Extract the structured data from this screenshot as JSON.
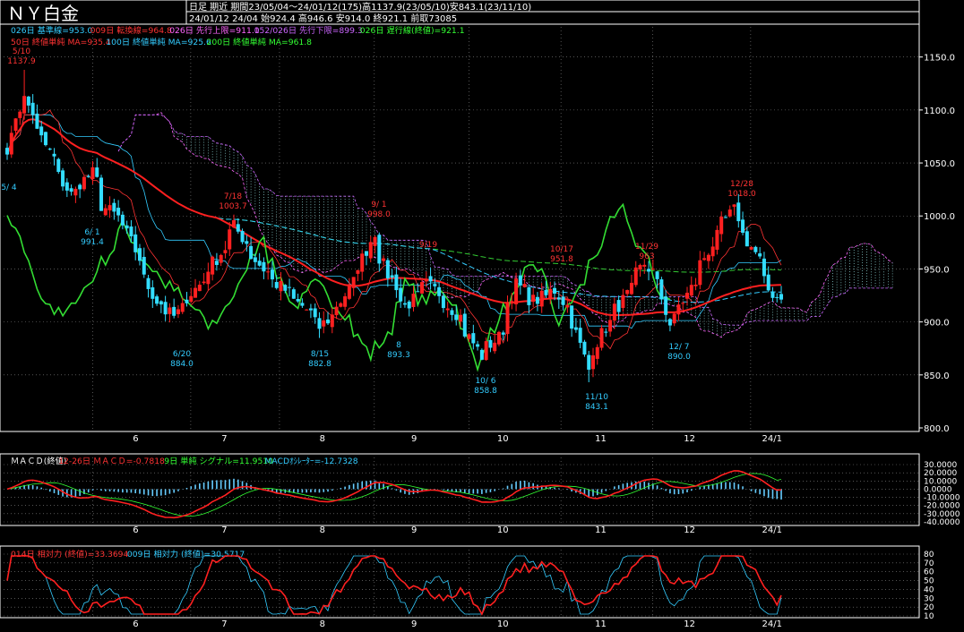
{
  "header": {
    "title": "ＮＹ白金",
    "line1": "日足  期近  期間23/05/04～24/01/12(175)高1137.9(23/05/10)安843.1(23/11/10)",
    "line2": "24/01/12 24/04 始924.4 高946.6 安914.0 終921.1 前取73085"
  },
  "legend": {
    "row1": [
      {
        "text": "026日 基準線=953.0",
        "color": "#33ccff"
      },
      {
        "text": "009日 転換線=964.8",
        "color": "#ff3333"
      },
      {
        "text": "026日 先行上限=911.1",
        "color": "#ff66ff"
      },
      {
        "text": "052/026日 先行下限=899.3",
        "color": "#cc66ff"
      },
      {
        "text": "026日 遅行線(終値)=921.1",
        "color": "#33ff33"
      }
    ],
    "row2": [
      {
        "text": "50日 終値単純 MA=935.4",
        "color": "#ff3333"
      },
      {
        "text": "100日 終値単純 MA=925.6",
        "color": "#33ccff"
      },
      {
        "text": "200日 終値単純 MA=961.8",
        "color": "#33ff33"
      }
    ]
  },
  "macd_legend": [
    {
      "text": "ＭＡＣＤ(終値)",
      "color": "#ffffff"
    },
    {
      "text": "12-26日 ＭＡＣＤ=-0.7818",
      "color": "#ff3333"
    },
    {
      "text": "9日 単純 シグナル=11.9510",
      "color": "#33ff33"
    },
    {
      "text": "MACDｵｼﾚｰﾀｰ=-12.7328",
      "color": "#33ccff"
    }
  ],
  "rsi_legend": [
    {
      "text": "014日 相対力 (終値)=33.3694",
      "color": "#ff3333"
    },
    {
      "text": "009日 相対力 (終値)=30.5717",
      "color": "#33ccff"
    }
  ],
  "price_axis": {
    "ticks": [
      "1150.0",
      "1100.0",
      "1050.0",
      "1000.0",
      "950.0",
      "900.0",
      "850.0",
      "800.0"
    ],
    "values": [
      1150,
      1100,
      1050,
      1000,
      950,
      900,
      850,
      800
    ],
    "ylim": [
      800,
      1170
    ]
  },
  "macd_axis": {
    "ticks": [
      "30.0000",
      "20.0000",
      "10.0000",
      "0.0000",
      "-10.0000",
      "-20.0000",
      "-30.0000",
      "-40.0000"
    ],
    "values": [
      30,
      20,
      10,
      0,
      -10,
      -20,
      -30,
      -40
    ],
    "ylim": [
      -40,
      30
    ]
  },
  "rsi_axis": {
    "ticks": [
      "80",
      "70",
      "60",
      "50",
      "40",
      "30",
      "20",
      "10"
    ],
    "values": [
      80,
      70,
      60,
      50,
      40,
      30,
      20,
      10
    ],
    "ylim": [
      10,
      80
    ]
  },
  "month_labels": [
    "6",
    "7",
    "8",
    "9",
    "10",
    "11",
    "12",
    "24/1"
  ],
  "annotations": [
    {
      "date": "5/10",
      "value": "1137.9",
      "color": "#ff3333"
    },
    {
      "date": "5/ 4",
      "value": "",
      "color": "#33ccff"
    },
    {
      "date": "6/ 1",
      "value": "991.4",
      "color": "#33ccff"
    },
    {
      "date": "6/20",
      "value": "884.0",
      "color": "#33ccff"
    },
    {
      "date": "7/18",
      "value": "1003.7",
      "color": "#ff3333"
    },
    {
      "date": "8/15",
      "value": "882.8",
      "color": "#33ccff"
    },
    {
      "date": "9/ 1",
      "value": "998.0",
      "color": "#ff3333"
    },
    {
      "date": "8",
      "value": "893.3",
      "color": "#33ccff"
    },
    {
      "date": "9/19",
      "value": "",
      "color": "#ff3333"
    },
    {
      "date": "10/ 6",
      "value": "858.8",
      "color": "#33ccff"
    },
    {
      "date": "10/17",
      "value": "951.8",
      "color": "#ff3333"
    },
    {
      "date": "11/10",
      "value": "843.1",
      "color": "#33ccff"
    },
    {
      "date": "11/29",
      "value": "963",
      "color": "#ff3333"
    },
    {
      "date": "12/ 7",
      "value": "890.0",
      "color": "#33ccff"
    },
    {
      "date": "12/28",
      "value": "1018.0",
      "color": "#ff3333"
    }
  ],
  "chart_data": [
    {
      "type": "candlestick",
      "title": "ＮＹ白金",
      "xlabel": "",
      "ylabel": "",
      "ylim": [
        800,
        1170
      ],
      "grid": true,
      "months": [
        "6",
        "7",
        "8",
        "9",
        "10",
        "11",
        "12",
        "24/1"
      ],
      "close_anchors": [
        [
          "23/05/04",
          1065
        ],
        [
          "23/05/10",
          1110
        ],
        [
          "23/05/18",
          1060
        ],
        [
          "23/05/25",
          1020
        ],
        [
          "23/06/01",
          1040
        ],
        [
          "23/06/05",
          1010
        ],
        [
          "23/06/12",
          990
        ],
        [
          "23/06/16",
          960
        ],
        [
          "23/06/22",
          920
        ],
        [
          "23/06/28",
          905
        ],
        [
          "23/07/06",
          935
        ],
        [
          "23/07/12",
          960
        ],
        [
          "23/07/18",
          990
        ],
        [
          "23/07/21",
          975
        ],
        [
          "23/07/27",
          950
        ],
        [
          "23/08/03",
          930
        ],
        [
          "23/08/09",
          915
        ],
        [
          "23/08/15",
          895
        ],
        [
          "23/08/22",
          920
        ],
        [
          "23/08/29",
          960
        ],
        [
          "23/09/01",
          985
        ],
        [
          "23/09/06",
          945
        ],
        [
          "23/09/12",
          915
        ],
        [
          "23/09/19",
          935
        ],
        [
          "23/09/25",
          920
        ],
        [
          "23/09/29",
          905
        ],
        [
          "23/10/04",
          880
        ],
        [
          "23/10/06",
          868
        ],
        [
          "23/10/12",
          885
        ],
        [
          "23/10/18",
          935
        ],
        [
          "23/10/24",
          920
        ],
        [
          "23/10/31",
          930
        ],
        [
          "23/11/06",
          900
        ],
        [
          "23/11/10",
          855
        ],
        [
          "23/11/16",
          895
        ],
        [
          "23/11/22",
          920
        ],
        [
          "23/11/29",
          955
        ],
        [
          "23/12/04",
          935
        ],
        [
          "23/12/07",
          898
        ],
        [
          "23/12/12",
          920
        ],
        [
          "23/12/18",
          955
        ],
        [
          "23/12/22",
          980
        ],
        [
          "23/12/28",
          1005
        ],
        [
          "24/01/04",
          965
        ],
        [
          "24/01/09",
          930
        ],
        [
          "24/01/12",
          921.1
        ]
      ],
      "high": 1137.9,
      "low": 843.1,
      "last_close": 921.1,
      "ichimoku": {
        "base": 953.0,
        "conversion": 964.8,
        "span_a": 911.1,
        "span_b": 899.3,
        "lagging": 921.1
      },
      "ma": [
        {
          "name": "50日 終値単純 MA",
          "value": 935.4
        },
        {
          "name": "100日 終値単純 MA",
          "value": 925.6
        },
        {
          "name": "200日 終値単純 MA",
          "value": 961.8
        }
      ],
      "colors": {
        "up": "#ff2020",
        "down": "#33ddff",
        "ma50": "#ff2020",
        "ma100": "#33ccff",
        "ma200": "#33cc33",
        "lagging": "#33dd33",
        "cloud": "#cc66ff"
      }
    },
    {
      "type": "line",
      "title": "ＭＡＣＤ(終値)",
      "ylim": [
        -40,
        30
      ],
      "series": [
        {
          "name": "12-26日 ＭＡＣＤ",
          "last": -0.7818
        },
        {
          "name": "9日 単純 シグナル",
          "last": 11.951
        },
        {
          "name": "MACDｵｼﾚｰﾀｰ",
          "last": -12.7328
        }
      ]
    },
    {
      "type": "line",
      "title": "相対力",
      "ylim": [
        10,
        80
      ],
      "series": [
        {
          "name": "014日 相対力 (終値)",
          "last": 33.3694
        },
        {
          "name": "009日 相対力 (終値)",
          "last": 30.5717
        }
      ]
    }
  ]
}
